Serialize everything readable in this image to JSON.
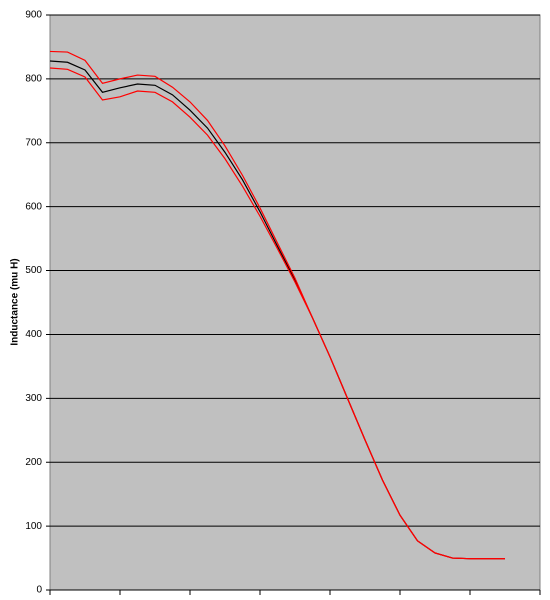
{
  "chart_data": {
    "type": "line",
    "y_label": "Inductance (mu H)",
    "categories": [
      null,
      null,
      null,
      null,
      null,
      null,
      null,
      null,
      null,
      null,
      null,
      null,
      null,
      null,
      null,
      null,
      null,
      null,
      null,
      null,
      null,
      null,
      null,
      null,
      null,
      null,
      null,
      null,
      null
    ],
    "series": [
      {
        "color": "#000000",
        "values": [
          828,
          826,
          814,
          779,
          786,
          792,
          790,
          775,
          751,
          723,
          685,
          642,
          592,
          538,
          485,
          426,
          365,
          300,
          235,
          172,
          117,
          77,
          58,
          50,
          49,
          49,
          49,
          null,
          null
        ]
      },
      {
        "color": "#ff0000",
        "values": [
          843,
          842,
          829,
          793,
          800,
          806,
          804,
          787,
          764,
          735,
          695,
          649,
          598,
          543,
          488,
          426,
          365,
          300,
          235,
          172,
          117,
          77,
          58,
          50,
          49,
          49,
          49,
          null,
          null
        ]
      },
      {
        "color": "#ff0000",
        "values": [
          817,
          815,
          803,
          767,
          772,
          781,
          779,
          764,
          740,
          712,
          675,
          632,
          585,
          534,
          482,
          426,
          365,
          300,
          235,
          172,
          117,
          77,
          58,
          50,
          49,
          49,
          49,
          null,
          null
        ]
      }
    ],
    "ylim": [
      0,
      900
    ],
    "yticks": [
      0,
      100,
      200,
      300,
      400,
      500,
      600,
      700,
      800,
      900
    ],
    "grid": true
  }
}
